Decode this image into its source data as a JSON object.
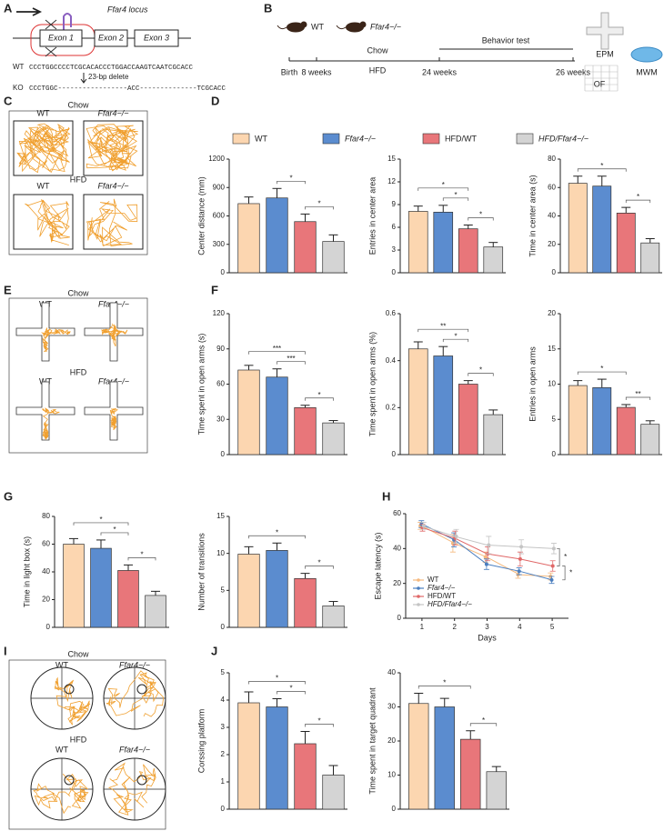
{
  "panels": {
    "A": {
      "label": "A",
      "locus": "Ffar4 locus",
      "exons": [
        "Exon 1",
        "Exon 2",
        "Exon 3"
      ],
      "wt_label": "WT",
      "wt_seq": "CCCTGGCCCCTCGCACACCCTGGACCAAGTCAATCGCACC",
      "deletion": "23-bp delete",
      "ko_label": "KO",
      "ko_seq": "CCCTGGC-----------------ACC--------------TCGCACC"
    },
    "B": {
      "label": "B",
      "mice": [
        "WT",
        "Ffar4−/−"
      ],
      "chow": "Chow",
      "hfd": "HFD",
      "behavior": "Behavior test",
      "times": [
        "Birth",
        "8 weeks",
        "24 weeks",
        "26 weeks"
      ],
      "tests": [
        "EPM",
        "OF",
        "MWM"
      ]
    },
    "C": {
      "label": "C",
      "chow": "Chow",
      "hfd": "HFD",
      "groups": [
        "WT",
        "Ffar4−/−"
      ]
    },
    "D": {
      "label": "D"
    },
    "E": {
      "label": "E",
      "chow": "Chow",
      "hfd": "HFD",
      "groups": [
        "WT",
        "Ffar4−/−"
      ]
    },
    "F": {
      "label": "F"
    },
    "G": {
      "label": "G"
    },
    "H": {
      "label": "H"
    },
    "I": {
      "label": "I",
      "chow": "Chow",
      "hfd": "HFD",
      "groups": [
        "WT",
        "Ffar4−/−"
      ]
    },
    "J": {
      "label": "J"
    }
  },
  "legend": [
    {
      "name": "WT",
      "color": "#fcd6b0"
    },
    {
      "name": "Ffar4−/−",
      "color": "#5b8ccf"
    },
    {
      "name": "HFD/WT",
      "color": "#e8767a"
    },
    {
      "name": "HFD/Ffar4−/−",
      "color": "#d4d4d4"
    }
  ],
  "chart_data": [
    {
      "type": "bar",
      "ylabel": "Center distance (mm)",
      "values": [
        730,
        790,
        540,
        330
      ],
      "errors": [
        70,
        100,
        80,
        70
      ],
      "ylim": [
        0,
        1200
      ],
      "yticks": [
        0,
        300,
        600,
        900,
        1200
      ],
      "annotations": [
        {
          "text": "*",
          "from": 1,
          "to": 2
        },
        {
          "text": "*",
          "from": 2,
          "to": 3
        }
      ]
    },
    {
      "type": "bar",
      "ylabel": "Entries in center area",
      "values": [
        8.1,
        8.0,
        5.8,
        3.4
      ],
      "errors": [
        0.7,
        0.9,
        0.5,
        0.6
      ],
      "ylim": [
        0,
        15
      ],
      "yticks": [
        0,
        3,
        6,
        9,
        12,
        15
      ],
      "annotations": [
        {
          "text": "*",
          "from": 1,
          "to": 2
        },
        {
          "text": "*",
          "from": 0,
          "to": 2
        },
        {
          "text": "*",
          "from": 2,
          "to": 3
        }
      ]
    },
    {
      "type": "bar",
      "ylabel": "Time in center area (s)",
      "values": [
        63,
        61,
        42,
        21
      ],
      "errors": [
        5,
        7,
        4,
        3
      ],
      "ylim": [
        0,
        80
      ],
      "yticks": [
        0,
        20,
        40,
        60,
        80
      ],
      "annotations": [
        {
          "text": "*",
          "from": 0,
          "to": 2
        },
        {
          "text": "*",
          "from": 2,
          "to": 3
        }
      ]
    },
    {
      "type": "bar",
      "ylabel": "Time spent in open arms (s)",
      "values": [
        72,
        66,
        40,
        27
      ],
      "errors": [
        4,
        7,
        2,
        2
      ],
      "ylim": [
        0,
        120
      ],
      "yticks": [
        0,
        30,
        60,
        90,
        120
      ],
      "annotations": [
        {
          "text": "***",
          "from": 1,
          "to": 2
        },
        {
          "text": "***",
          "from": 0,
          "to": 2
        },
        {
          "text": "*",
          "from": 2,
          "to": 3
        }
      ]
    },
    {
      "type": "bar",
      "ylabel": "Time spent in open arms (%)",
      "values": [
        0.45,
        0.42,
        0.3,
        0.17
      ],
      "errors": [
        0.03,
        0.04,
        0.015,
        0.02
      ],
      "ylim": [
        0,
        0.6
      ],
      "yticks": [
        0,
        0.2,
        0.4,
        0.6
      ],
      "annotations": [
        {
          "text": "*",
          "from": 1,
          "to": 2
        },
        {
          "text": "**",
          "from": 0,
          "to": 2
        },
        {
          "text": "*",
          "from": 2,
          "to": 3
        }
      ]
    },
    {
      "type": "bar",
      "ylabel": "Entries in open arms",
      "values": [
        9.8,
        9.5,
        6.7,
        4.3
      ],
      "errors": [
        0.7,
        1.2,
        0.4,
        0.5
      ],
      "ylim": [
        0,
        20
      ],
      "yticks": [
        0,
        5,
        10,
        15,
        20
      ],
      "annotations": [
        {
          "text": "*",
          "from": 0,
          "to": 2
        },
        {
          "text": "**",
          "from": 2,
          "to": 3
        }
      ]
    },
    {
      "type": "bar",
      "ylabel": "Time in light box (s)",
      "values": [
        60,
        57,
        41,
        23
      ],
      "errors": [
        4,
        6,
        4,
        3
      ],
      "ylim": [
        0,
        80
      ],
      "yticks": [
        0,
        20,
        40,
        60,
        80
      ],
      "annotations": [
        {
          "text": "*",
          "from": 1,
          "to": 2
        },
        {
          "text": "*",
          "from": 0,
          "to": 2
        },
        {
          "text": "*",
          "from": 2,
          "to": 3
        }
      ]
    },
    {
      "type": "bar",
      "ylabel": "Number of transitions",
      "values": [
        9.9,
        10.4,
        6.6,
        2.9
      ],
      "errors": [
        1.0,
        1.0,
        0.7,
        0.6
      ],
      "ylim": [
        0,
        15
      ],
      "yticks": [
        0,
        5,
        10,
        15
      ],
      "annotations": [
        {
          "text": "*",
          "from": 0,
          "to": 2
        },
        {
          "text": "*",
          "from": 2,
          "to": 3
        }
      ]
    },
    {
      "type": "line",
      "xlabel": "Days",
      "ylabel": "Escape latency (s)",
      "x": [
        1,
        2,
        3,
        4,
        5
      ],
      "xlim": [
        0.5,
        5.5
      ],
      "xticks": [
        1,
        2,
        3,
        4,
        5
      ],
      "ylim": [
        0,
        60
      ],
      "yticks": [
        0,
        20,
        40,
        60
      ],
      "series": [
        {
          "name": "WT",
          "color": "#f5b97e",
          "values": [
            53,
            43,
            35,
            25,
            24
          ],
          "errors": [
            2,
            5,
            3,
            2,
            2
          ]
        },
        {
          "name": "Ffar4−/−",
          "color": "#4a7ebf",
          "values": [
            54,
            45,
            31,
            27,
            22
          ],
          "errors": [
            2,
            4,
            3,
            2,
            2
          ]
        },
        {
          "name": "HFD/WT",
          "color": "#e06868",
          "values": [
            52,
            46,
            37,
            34,
            30
          ],
          "errors": [
            2,
            4,
            4,
            4,
            3
          ]
        },
        {
          "name": "HFD/Ffar4−/−",
          "color": "#c4c4c4",
          "values": [
            53,
            47,
            42,
            41,
            40
          ],
          "errors": [
            2,
            4,
            5,
            4,
            3
          ]
        }
      ],
      "annotations": [
        {
          "text": "*",
          "from": 3,
          "to": 2
        },
        {
          "text": "*",
          "from": 2,
          "to": 1
        }
      ]
    },
    {
      "type": "bar",
      "ylabel": "Corssing platform",
      "values": [
        3.9,
        3.75,
        2.4,
        1.25
      ],
      "errors": [
        0.4,
        0.3,
        0.45,
        0.35
      ],
      "ylim": [
        0,
        5
      ],
      "yticks": [
        0,
        1,
        2,
        3,
        4,
        5
      ],
      "annotations": [
        {
          "text": "*",
          "from": 1,
          "to": 2
        },
        {
          "text": "*",
          "from": 0,
          "to": 2
        },
        {
          "text": "*",
          "from": 2,
          "to": 3
        }
      ]
    },
    {
      "type": "bar",
      "ylabel": "Time spent in target quadrant",
      "values": [
        31,
        30,
        20.5,
        11
      ],
      "errors": [
        3,
        2.5,
        2.5,
        1.5
      ],
      "ylim": [
        0,
        40
      ],
      "yticks": [
        0,
        10,
        20,
        30,
        40
      ],
      "annotations": [
        {
          "text": "*",
          "from": 0,
          "to": 2
        },
        {
          "text": "*",
          "from": 2,
          "to": 3
        }
      ]
    }
  ]
}
